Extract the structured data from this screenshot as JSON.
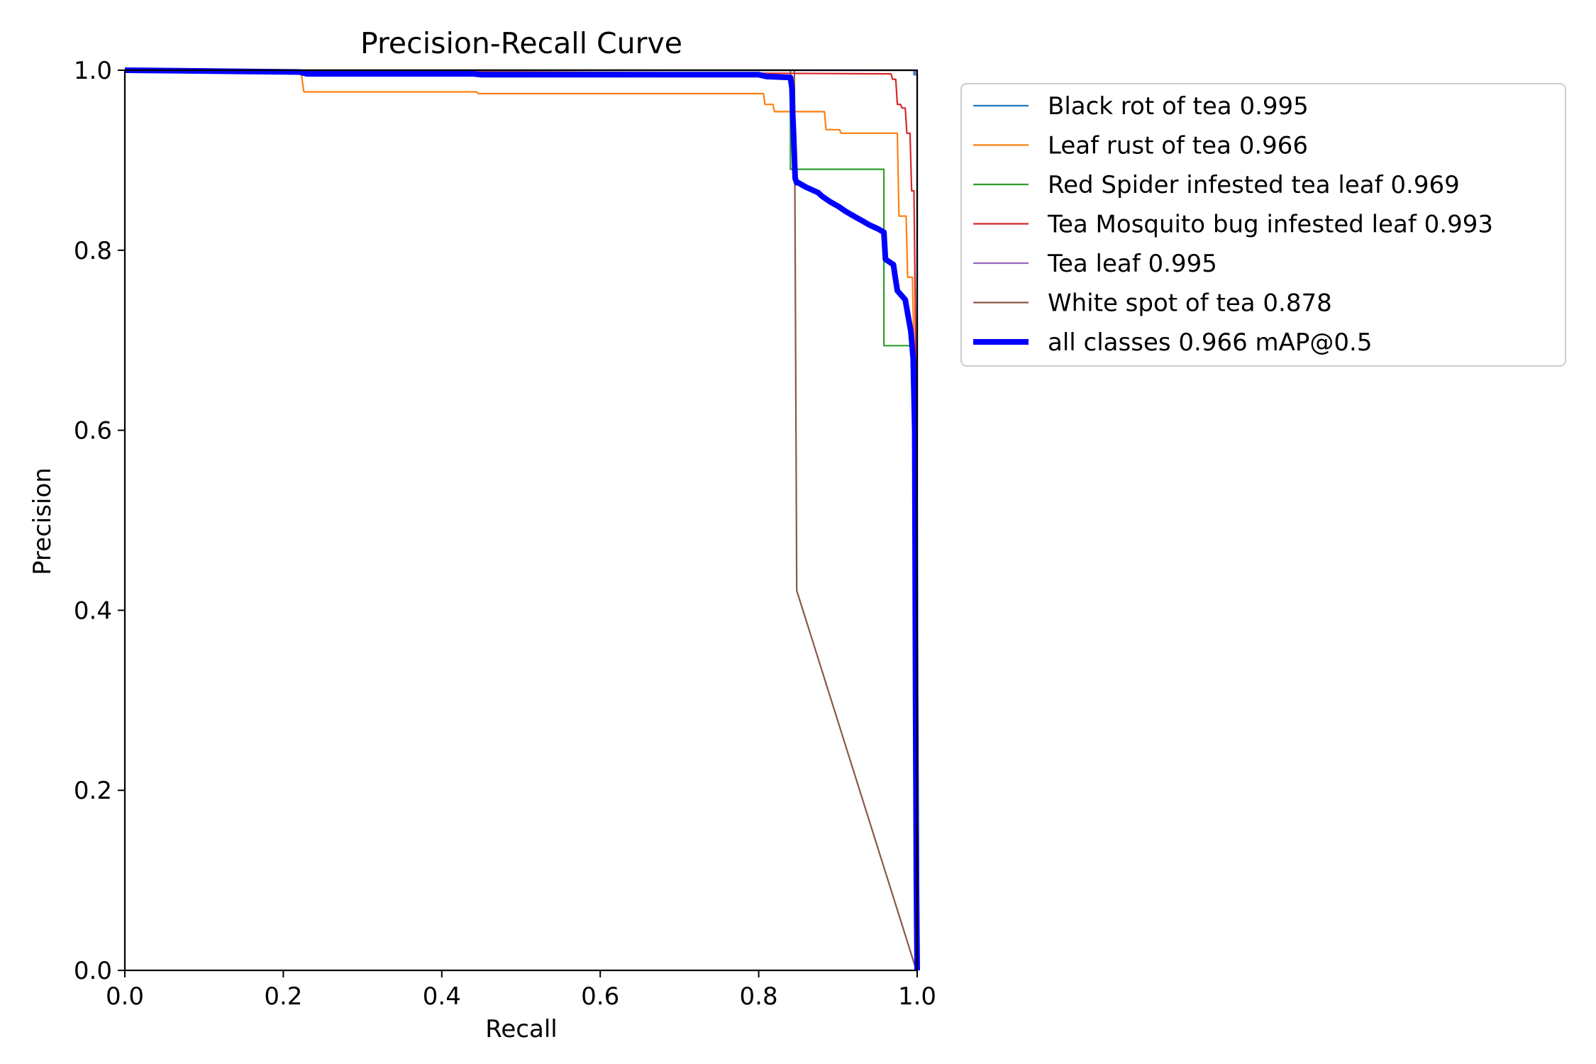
{
  "chart_data": {
    "type": "line",
    "title": "Precision-Recall Curve",
    "xlabel": "Recall",
    "ylabel": "Precision",
    "xlim": [
      0.0,
      1.0
    ],
    "ylim": [
      0.0,
      1.0
    ],
    "xticks": [
      "0.0",
      "0.2",
      "0.4",
      "0.6",
      "0.8",
      "1.0"
    ],
    "yticks": [
      "0.0",
      "0.2",
      "0.4",
      "0.6",
      "0.8",
      "1.0"
    ],
    "grid": false,
    "legend_position": "outside-right-top",
    "series": [
      {
        "name": "Black rot of tea 0.995",
        "color": "#1f77b4",
        "width": "thin",
        "x": [
          0.0,
          0.996,
          0.996,
          1.0,
          1.0
        ],
        "y": [
          1.0,
          1.0,
          0.995,
          0.995,
          0.0
        ]
      },
      {
        "name": "Leaf rust of tea 0.966",
        "color": "#ff7f0e",
        "width": "thin",
        "x": [
          0.0,
          0.222,
          0.226,
          0.444,
          0.446,
          0.806,
          0.808,
          0.818,
          0.82,
          0.883,
          0.885,
          0.902,
          0.904,
          0.975,
          0.977,
          0.986,
          0.988,
          0.994,
          0.996,
          1.0
        ],
        "y": [
          1.0,
          1.0,
          0.976,
          0.976,
          0.974,
          0.974,
          0.962,
          0.962,
          0.954,
          0.954,
          0.934,
          0.934,
          0.93,
          0.93,
          0.838,
          0.838,
          0.77,
          0.77,
          0.69,
          0.0
        ]
      },
      {
        "name": "Red Spider infested tea leaf 0.969",
        "color": "#2ca02c",
        "width": "thin",
        "x": [
          0.0,
          0.84,
          0.84,
          0.958,
          0.958,
          0.995,
          0.995,
          1.0
        ],
        "y": [
          1.0,
          1.0,
          0.89,
          0.89,
          0.694,
          0.694,
          0.6,
          0.0
        ]
      },
      {
        "name": "Tea Mosquito bug infested leaf 0.993",
        "color": "#d62728",
        "width": "thin",
        "x": [
          0.0,
          0.967,
          0.969,
          0.973,
          0.975,
          0.979,
          0.981,
          0.985,
          0.987,
          0.991,
          0.993,
          0.996,
          0.998,
          1.0
        ],
        "y": [
          1.0,
          0.996,
          0.99,
          0.99,
          0.962,
          0.962,
          0.958,
          0.958,
          0.93,
          0.93,
          0.866,
          0.866,
          0.7,
          0.0
        ]
      },
      {
        "name": "Tea leaf 0.995",
        "color": "#9467bd",
        "width": "thin",
        "x": [
          0.0,
          0.998,
          0.998,
          1.0,
          1.0
        ],
        "y": [
          1.0,
          1.0,
          0.995,
          0.995,
          0.0
        ]
      },
      {
        "name": "White spot of tea 0.878",
        "color": "#8c564b",
        "width": "thin",
        "x": [
          0.0,
          0.845,
          0.845,
          0.848,
          0.999,
          1.0
        ],
        "y": [
          1.0,
          1.0,
          0.99,
          0.422,
          0.0,
          0.0
        ]
      },
      {
        "name": "all classes 0.966 mAP@0.5",
        "color": "#0000ff",
        "width": "thick",
        "x": [
          0.0,
          0.22,
          0.23,
          0.44,
          0.45,
          0.8,
          0.81,
          0.84,
          0.842,
          0.843,
          0.844,
          0.846,
          0.848,
          0.85,
          0.86,
          0.87,
          0.875,
          0.88,
          0.885,
          0.89,
          0.9,
          0.91,
          0.92,
          0.93,
          0.94,
          0.95,
          0.958,
          0.96,
          0.97,
          0.972,
          0.975,
          0.98,
          0.985,
          0.99,
          0.992,
          0.995,
          0.997,
          0.998,
          0.999,
          1.0
        ],
        "y": [
          1.0,
          0.998,
          0.996,
          0.996,
          0.995,
          0.995,
          0.993,
          0.992,
          0.98,
          0.95,
          0.93,
          0.88,
          0.875,
          0.875,
          0.87,
          0.866,
          0.864,
          0.86,
          0.857,
          0.854,
          0.849,
          0.843,
          0.838,
          0.833,
          0.828,
          0.824,
          0.82,
          0.79,
          0.784,
          0.772,
          0.755,
          0.75,
          0.745,
          0.72,
          0.71,
          0.68,
          0.6,
          0.3,
          0.1,
          0.0
        ]
      }
    ]
  }
}
